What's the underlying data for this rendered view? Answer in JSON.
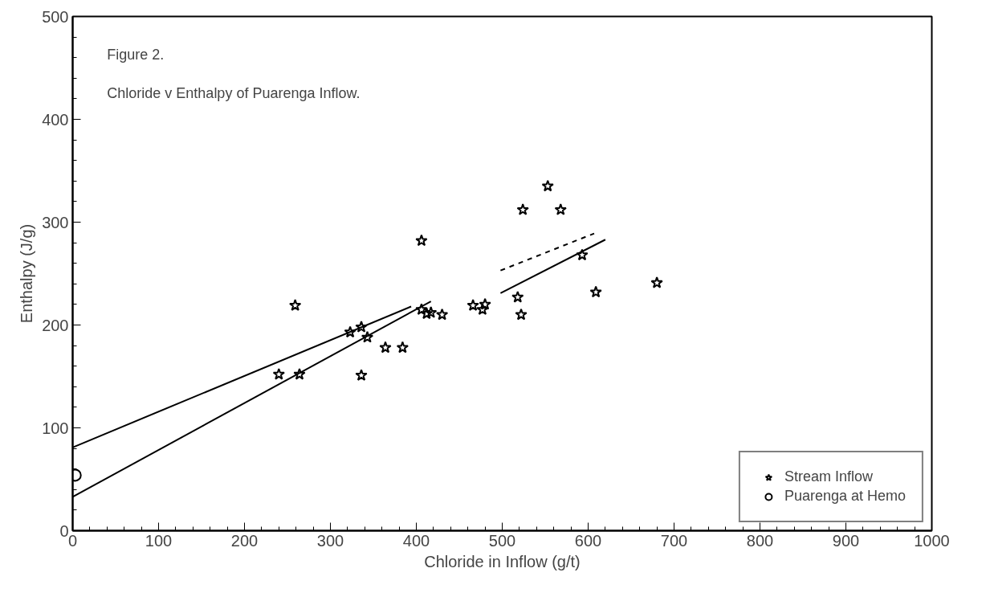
{
  "chart_data": {
    "type": "scatter",
    "title": "Figure 2.",
    "subtitle": "Chloride v Enthalpy of Puarenga Inflow.",
    "xlabel": "Chloride in Inflow (g/t)",
    "ylabel": "Enthalpy (J/g)",
    "xlim": [
      0,
      1000
    ],
    "ylim": [
      0,
      500
    ],
    "xticks": [
      0,
      100,
      200,
      300,
      400,
      500,
      600,
      700,
      800,
      900,
      1000
    ],
    "yticks": [
      0,
      100,
      200,
      300,
      400,
      500
    ],
    "grid": false,
    "legend": "bottom right",
    "series": [
      {
        "name": "Stream Inflow",
        "color": "#000000",
        "marker": "star",
        "x": [
          259,
          406,
          323,
          336,
          343,
          240,
          264,
          336,
          364,
          384,
          406,
          412,
          417,
          430,
          466,
          480,
          477,
          518,
          522,
          524,
          553,
          568,
          593,
          609,
          680
        ],
        "values": [
          219,
          282,
          193,
          198,
          188,
          152,
          152,
          151,
          178,
          178,
          215,
          211,
          212,
          210,
          219,
          220,
          215,
          227,
          210,
          312,
          335,
          312,
          268,
          232,
          241
        ]
      },
      {
        "name": "Puarenga at Hemo",
        "color": "#000000",
        "marker": "circle",
        "x": [
          3
        ],
        "values": [
          54
        ]
      },
      {
        "type": "line",
        "color": "#000000",
        "line_style": "solid",
        "x": [
          0,
          394
        ],
        "values": [
          81,
          218
        ]
      },
      {
        "type": "line",
        "color": "#000000",
        "line_style": "solid",
        "x": [
          0,
          417
        ],
        "values": [
          33,
          223
        ]
      },
      {
        "type": "line",
        "color": "#000000",
        "line_style": "solid",
        "x": [
          498,
          620
        ],
        "values": [
          231,
          283
        ]
      },
      {
        "type": "line",
        "color": "#000000",
        "line_style": "dashed",
        "x": [
          498,
          607
        ],
        "values": [
          253,
          289
        ]
      }
    ]
  }
}
